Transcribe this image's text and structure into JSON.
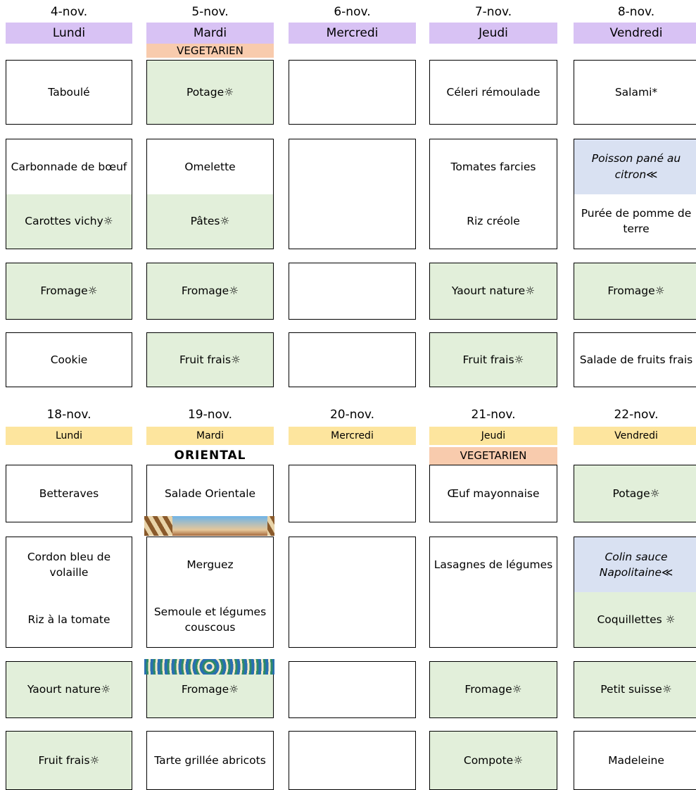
{
  "weeks": [
    {
      "days": [
        {
          "date": "4-nov.",
          "day": "Lundi",
          "courses": [
            [
              {
                "text": "Taboulé"
              }
            ],
            [
              {
                "text": "Carbonnade de bœuf"
              },
              {
                "text": "Carottes vichy☼",
                "kind": "bio"
              }
            ],
            [
              {
                "text": "Fromage☼",
                "kind": "bio"
              }
            ],
            [
              {
                "text": "Cookie"
              }
            ]
          ]
        },
        {
          "date": "5-nov.",
          "day": "Mardi",
          "theme": "VEGETARIEN",
          "courses": [
            [
              {
                "text": "Potage☼",
                "kind": "bio"
              }
            ],
            [
              {
                "text": "Omelette"
              },
              {
                "text": "Pâtes☼",
                "kind": "bio"
              }
            ],
            [
              {
                "text": "Fromage☼",
                "kind": "bio"
              }
            ],
            [
              {
                "text": "Fruit frais☼",
                "kind": "bio"
              }
            ]
          ]
        },
        {
          "date": "6-nov.",
          "day": "Mercredi",
          "courses": [
            [],
            [],
            [],
            []
          ]
        },
        {
          "date": "7-nov.",
          "day": "Jeudi",
          "courses": [
            [
              {
                "text": "Céleri rémoulade"
              }
            ],
            [
              {
                "text": "Tomates farcies"
              },
              {
                "text": "Riz créole"
              }
            ],
            [
              {
                "text": "Yaourt nature☼",
                "kind": "bio"
              }
            ],
            [
              {
                "text": "Fruit frais☼",
                "kind": "bio"
              }
            ]
          ]
        },
        {
          "date": "8-nov.",
          "day": "Vendredi",
          "courses": [
            [
              {
                "text": "Salami*"
              }
            ],
            [
              {
                "text": "Poisson pané au citron≪",
                "kind": "fish"
              },
              {
                "text": "Purée de pomme de terre"
              }
            ],
            [
              {
                "text": "Fromage☼",
                "kind": "bio"
              }
            ],
            [
              {
                "text": "Salade de fruits frais"
              }
            ]
          ]
        }
      ]
    },
    {
      "days": [
        {
          "date": "18-nov.",
          "day": "Lundi",
          "courses": [
            [
              {
                "text": "Betteraves"
              }
            ],
            [
              {
                "text": "Cordon bleu de volaille"
              },
              {
                "text": "Riz à la tomate"
              }
            ],
            [
              {
                "text": "Yaourt nature☼",
                "kind": "bio"
              }
            ],
            [
              {
                "text": "Fruit frais☼",
                "kind": "bio"
              }
            ]
          ]
        },
        {
          "date": "19-nov.",
          "day": "Mardi",
          "theme": "ORIENTAL",
          "courses": [
            [
              {
                "text": "Salade Orientale"
              }
            ],
            [
              {
                "text": "Merguez"
              },
              {
                "text": "Semoule et légumes couscous"
              }
            ],
            [
              {
                "text": "Fromage☼",
                "kind": "bio"
              }
            ],
            [
              {
                "text": "Tarte grillée abricots"
              }
            ]
          ]
        },
        {
          "date": "20-nov.",
          "day": "Mercredi",
          "courses": [
            [],
            [],
            [],
            []
          ]
        },
        {
          "date": "21-nov.",
          "day": "Jeudi",
          "theme": "VEGETARIEN",
          "courses": [
            [
              {
                "text": "Œuf mayonnaise"
              }
            ],
            [
              {
                "text": "Lasagnes de légumes"
              }
            ],
            [
              {
                "text": "Fromage☼",
                "kind": "bio"
              }
            ],
            [
              {
                "text": "Compote☼",
                "kind": "bio"
              }
            ]
          ]
        },
        {
          "date": "22-nov.",
          "day": "Vendredi",
          "courses": [
            [
              {
                "text": "Potage☼",
                "kind": "bio"
              }
            ],
            [
              {
                "text": "Colin sauce Napolitaine≪",
                "kind": "fish"
              },
              {
                "text": "Coquillettes ☼",
                "kind": "bio"
              }
            ],
            [
              {
                "text": "Petit suisse☼",
                "kind": "bio"
              }
            ],
            [
              {
                "text": "Madeleine"
              }
            ]
          ]
        }
      ]
    }
  ]
}
